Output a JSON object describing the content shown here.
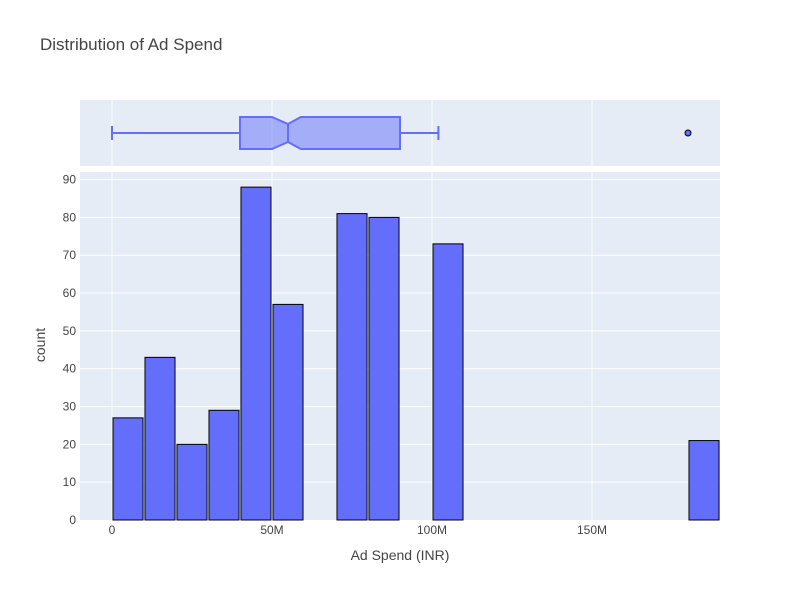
{
  "chart_data": {
    "type": "histogram",
    "title": "Distribution of Ad Spend",
    "xlabel": "Ad Spend (INR)",
    "ylabel": "count",
    "xlim": [
      -10000000,
      180000000
    ],
    "ylim": [
      0,
      92
    ],
    "x_ticks": [
      {
        "value": 0,
        "label": "0"
      },
      {
        "value": 50000000,
        "label": "50M"
      },
      {
        "value": 100000000,
        "label": "100M"
      },
      {
        "value": 150000000,
        "label": "150M"
      }
    ],
    "y_ticks": [
      0,
      10,
      20,
      30,
      40,
      50,
      60,
      70,
      80,
      90
    ],
    "bin_width": 10000000,
    "bins": [
      {
        "start": 0,
        "end": 10000000,
        "count": 27
      },
      {
        "start": 10000000,
        "end": 20000000,
        "count": 43
      },
      {
        "start": 20000000,
        "end": 30000000,
        "count": 20
      },
      {
        "start": 30000000,
        "end": 40000000,
        "count": 29
      },
      {
        "start": 40000000,
        "end": 50000000,
        "count": 88
      },
      {
        "start": 50000000,
        "end": 60000000,
        "count": 57
      },
      {
        "start": 70000000,
        "end": 80000000,
        "count": 81
      },
      {
        "start": 80000000,
        "end": 90000000,
        "count": 80
      },
      {
        "start": 100000000,
        "end": 110000000,
        "count": 73
      },
      {
        "start": 180000000,
        "end": 190000000,
        "count": 21
      }
    ],
    "boxplot": {
      "lower_fence": 0,
      "q1": 40000000,
      "median": 55000000,
      "q3": 90000000,
      "upper_fence": 102000000,
      "notch_low": 50000000,
      "notch_high": 59000000,
      "outliers": [
        180000000
      ]
    },
    "grid": true,
    "colors": {
      "bar_fill": "#636efa",
      "bar_stroke": "#000000",
      "box_line": "#636efa",
      "box_fill": "rgba(99,110,250,0.5)",
      "plot_bg": "#e5ecf6",
      "grid": "#ffffff",
      "text": "#444444"
    }
  }
}
